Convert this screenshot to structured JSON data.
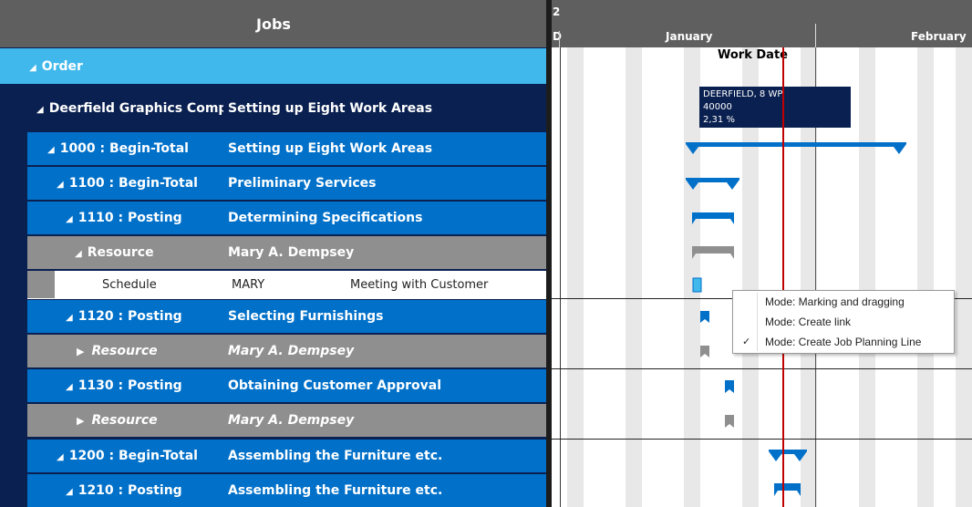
{
  "left": {
    "title": "Jobs",
    "rows": [
      {
        "c1": "Order",
        "c2": ""
      },
      {
        "c1": "Deerfield Graphics Comp",
        "c2": "Setting up Eight Work Areas"
      },
      {
        "c1": "1000 : Begin-Total",
        "c2": "Setting up Eight Work Areas"
      },
      {
        "c1": "1100 : Begin-Total",
        "c2": "Preliminary Services"
      },
      {
        "c1": "1110 : Posting",
        "c2": "Determining Specifications"
      },
      {
        "c1": "Resource",
        "c2": "Mary A. Dempsey"
      },
      {
        "c1": "Schedule",
        "c2": "MARY",
        "c3": "Meeting with Customer"
      },
      {
        "c1": "1120 : Posting",
        "c2": "Selecting Furnishings"
      },
      {
        "c1": "Resource",
        "c2": "Mary A. Dempsey"
      },
      {
        "c1": "1130 : Posting",
        "c2": "Obtaining Customer Approval"
      },
      {
        "c1": "Resource",
        "c2": "Mary A. Dempsey"
      },
      {
        "c1": "1200 : Begin-Total",
        "c2": "Assembling the Furniture etc."
      },
      {
        "c1": "1210 : Posting",
        "c2": "Assembling the Furniture etc."
      }
    ]
  },
  "gantt": {
    "year_digit": "2",
    "day_letter": "D",
    "months": [
      "January",
      "February"
    ],
    "work_date_label": "Work Date",
    "tooltip": [
      "DEERFIELD, 8 WP",
      "40000",
      "2,31 %"
    ]
  },
  "context_menu": {
    "items": [
      {
        "label": "Mode: Marking and dragging",
        "checked": false
      },
      {
        "label": "Mode: Create link",
        "checked": false
      },
      {
        "label": "Mode: Create Job Planning Line",
        "checked": true
      }
    ],
    "check_glyph": "✓"
  },
  "colors": {
    "navy": "#0a2050",
    "blue": "#0070c9",
    "light_blue": "#40b8ec",
    "gray": "#8f8f8f",
    "bar_blue": "#0070c9",
    "bar_gray": "#8f8f8f",
    "work_date_line": "#c00000"
  }
}
